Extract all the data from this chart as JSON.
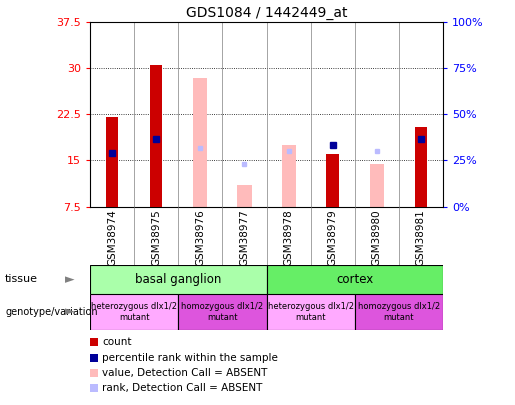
{
  "title": "GDS1084 / 1442449_at",
  "samples": [
    "GSM38974",
    "GSM38975",
    "GSM38976",
    "GSM38977",
    "GSM38978",
    "GSM38979",
    "GSM38980",
    "GSM38981"
  ],
  "ylim_left": [
    7.5,
    37.5
  ],
  "ylim_right": [
    0,
    100
  ],
  "yticks_left": [
    7.5,
    15.0,
    22.5,
    30.0,
    37.5
  ],
  "ytick_labels_left": [
    "7.5",
    "15",
    "22.5",
    "30",
    "37.5"
  ],
  "ytick_labels_right": [
    "0%",
    "25%",
    "50%",
    "75%",
    "100%"
  ],
  "count_values": [
    22.0,
    30.5,
    null,
    null,
    null,
    16.0,
    null,
    20.5
  ],
  "percentile_values": [
    16.2,
    18.5,
    null,
    null,
    null,
    17.5,
    null,
    18.5
  ],
  "absent_value_values": [
    null,
    null,
    28.5,
    11.0,
    17.5,
    null,
    14.5,
    null
  ],
  "absent_rank_values": [
    null,
    null,
    17.0,
    14.5,
    16.5,
    null,
    16.5,
    null
  ],
  "bar_bottom": 7.5,
  "count_color": "#cc0000",
  "percentile_color": "#000099",
  "absent_value_color": "#ffbbbb",
  "absent_rank_color": "#bbbbff",
  "tissue_basal_color": "#aaffaa",
  "tissue_cortex_color": "#66ee66",
  "geno_hetero_color": "#ffaaff",
  "geno_homo_color": "#dd55dd",
  "xticklabel_bg": "#dddddd",
  "legend_items": [
    {
      "label": "count",
      "color": "#cc0000"
    },
    {
      "label": "percentile rank within the sample",
      "color": "#000099"
    },
    {
      "label": "value, Detection Call = ABSENT",
      "color": "#ffbbbb"
    },
    {
      "label": "rank, Detection Call = ABSENT",
      "color": "#bbbbff"
    }
  ]
}
